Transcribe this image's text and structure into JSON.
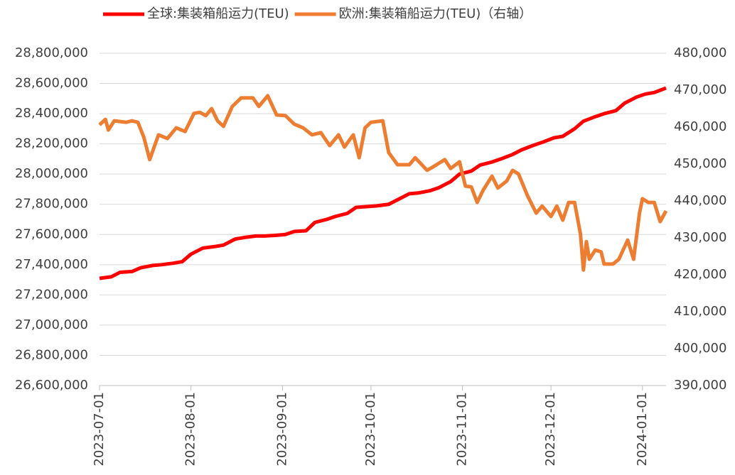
{
  "chart_data": {
    "type": "line",
    "xlim": [
      "2023-07-01",
      "2024-01-09"
    ],
    "xticks": [
      "2023-07-01",
      "2023-08-01",
      "2023-09-01",
      "2023-10-01",
      "2023-11-01",
      "2023-12-01",
      "2024-01-01"
    ],
    "ylim": [
      26600000,
      28800000
    ],
    "yticks": [
      {
        "value": 26600000,
        "label": "26,600,000"
      },
      {
        "value": 26800000,
        "label": "26,800,000"
      },
      {
        "value": 27000000,
        "label": "27,000,000"
      },
      {
        "value": 27200000,
        "label": "27,200,000"
      },
      {
        "value": 27400000,
        "label": "27,400,000"
      },
      {
        "value": 27600000,
        "label": "27,600,000"
      },
      {
        "value": 27800000,
        "label": "27,800,000"
      },
      {
        "value": 28000000,
        "label": "28,000,000"
      },
      {
        "value": 28200000,
        "label": "28,200,000"
      },
      {
        "value": 28400000,
        "label": "28,400,000"
      },
      {
        "value": 28600000,
        "label": "28,600,000"
      },
      {
        "value": 28800000,
        "label": "28,800,000"
      }
    ],
    "y2lim": [
      390000,
      480000
    ],
    "y2ticks": [
      {
        "value": 390000,
        "label": "390,000"
      },
      {
        "value": 400000,
        "label": "400,000"
      },
      {
        "value": 410000,
        "label": "410,000"
      },
      {
        "value": 420000,
        "label": "420,000"
      },
      {
        "value": 430000,
        "label": "430,000"
      },
      {
        "value": 440000,
        "label": "440,000"
      },
      {
        "value": 450000,
        "label": "450,000"
      },
      {
        "value": 460000,
        "label": "460,000"
      },
      {
        "value": 470000,
        "label": "470,000"
      },
      {
        "value": 480000,
        "label": "480,000"
      }
    ],
    "grid": true,
    "legend": "top",
    "series": [
      {
        "name": "全球:集装箱船运力(TEU)",
        "color": "#ff0000",
        "x": [
          "2023-07-01",
          "2023-07-05",
          "2023-07-08",
          "2023-07-12",
          "2023-07-15",
          "2023-07-19",
          "2023-07-22",
          "2023-07-26",
          "2023-07-29",
          "2023-08-01",
          "2023-08-05",
          "2023-08-09",
          "2023-08-12",
          "2023-08-16",
          "2023-08-19",
          "2023-08-23",
          "2023-08-26",
          "2023-08-30",
          "2023-09-02",
          "2023-09-05",
          "2023-09-09",
          "2023-09-12",
          "2023-09-16",
          "2023-09-19",
          "2023-09-23",
          "2023-09-26",
          "2023-09-30",
          "2023-10-03",
          "2023-10-07",
          "2023-10-10",
          "2023-10-14",
          "2023-10-17",
          "2023-10-21",
          "2023-10-24",
          "2023-10-28",
          "2023-10-31",
          "2023-11-04",
          "2023-11-07",
          "2023-11-11",
          "2023-11-14",
          "2023-11-18",
          "2023-11-21",
          "2023-11-25",
          "2023-11-28",
          "2023-12-02",
          "2023-12-05",
          "2023-12-09",
          "2023-12-12",
          "2023-12-16",
          "2023-12-19",
          "2023-12-23",
          "2023-12-26",
          "2023-12-30",
          "2024-01-02",
          "2024-01-05",
          "2024-01-09"
        ],
        "values": [
          27310000,
          27320000,
          27350000,
          27355000,
          27380000,
          27395000,
          27400000,
          27410000,
          27420000,
          27470000,
          27510000,
          27520000,
          27530000,
          27570000,
          27580000,
          27590000,
          27590000,
          27595000,
          27600000,
          27620000,
          27625000,
          27680000,
          27700000,
          27720000,
          27740000,
          27780000,
          27785000,
          27790000,
          27800000,
          27830000,
          27870000,
          27875000,
          27890000,
          27910000,
          27950000,
          28000000,
          28020000,
          28060000,
          28080000,
          28100000,
          28130000,
          28160000,
          28190000,
          28210000,
          28240000,
          28250000,
          28300000,
          28350000,
          28380000,
          28400000,
          28420000,
          28470000,
          28510000,
          28530000,
          28540000,
          28570000
        ]
      },
      {
        "name": "欧洲:集装箱船运力(TEU)（右轴）",
        "color": "#ed7d31",
        "axis": "y2",
        "x": [
          "2023-07-01",
          "2023-07-03",
          "2023-07-04",
          "2023-07-06",
          "2023-07-10",
          "2023-07-12",
          "2023-07-14",
          "2023-07-16",
          "2023-07-18",
          "2023-07-21",
          "2023-07-24",
          "2023-07-27",
          "2023-07-30",
          "2023-08-02",
          "2023-08-04",
          "2023-08-06",
          "2023-08-08",
          "2023-08-10",
          "2023-08-12",
          "2023-08-15",
          "2023-08-18",
          "2023-08-22",
          "2023-08-24",
          "2023-08-27",
          "2023-08-30",
          "2023-09-02",
          "2023-09-05",
          "2023-09-08",
          "2023-09-11",
          "2023-09-14",
          "2023-09-17",
          "2023-09-20",
          "2023-09-22",
          "2023-09-25",
          "2023-09-27",
          "2023-09-29",
          "2023-10-01",
          "2023-10-05",
          "2023-10-07",
          "2023-10-10",
          "2023-10-14",
          "2023-10-16",
          "2023-10-20",
          "2023-10-22",
          "2023-10-26",
          "2023-10-28",
          "2023-10-31",
          "2023-11-02",
          "2023-11-04",
          "2023-11-06",
          "2023-11-08",
          "2023-11-11",
          "2023-11-13",
          "2023-11-16",
          "2023-11-18",
          "2023-11-20",
          "2023-11-23",
          "2023-11-26",
          "2023-11-28",
          "2023-12-01",
          "2023-12-03",
          "2023-12-05",
          "2023-12-07",
          "2023-12-09",
          "2023-12-11",
          "2023-12-12",
          "2023-12-13",
          "2023-12-14",
          "2023-12-16",
          "2023-12-18",
          "2023-12-19",
          "2023-12-22",
          "2023-12-24",
          "2023-12-27",
          "2023-12-29",
          "2023-12-31",
          "2024-01-01",
          "2024-01-03",
          "2024-01-05",
          "2024-01-07",
          "2024-01-09"
        ],
        "values": [
          460600,
          462100,
          459200,
          461700,
          461300,
          461700,
          461300,
          457300,
          451200,
          457900,
          456900,
          459800,
          458800,
          463700,
          464000,
          463100,
          465000,
          461700,
          460200,
          465600,
          467900,
          467900,
          465600,
          468500,
          463300,
          463100,
          460800,
          459800,
          457900,
          458500,
          455000,
          457900,
          454600,
          457900,
          451700,
          459800,
          461300,
          461700,
          453100,
          449800,
          449800,
          451700,
          448300,
          449200,
          451200,
          448800,
          450600,
          444000,
          443800,
          439600,
          442900,
          446700,
          443500,
          445400,
          448300,
          447300,
          441500,
          436700,
          438600,
          435800,
          438600,
          434800,
          439600,
          439600,
          431000,
          421300,
          429000,
          424200,
          426700,
          426200,
          422900,
          422900,
          424200,
          429400,
          424200,
          436700,
          440600,
          439600,
          439600,
          434400,
          437300
        ]
      }
    ]
  }
}
